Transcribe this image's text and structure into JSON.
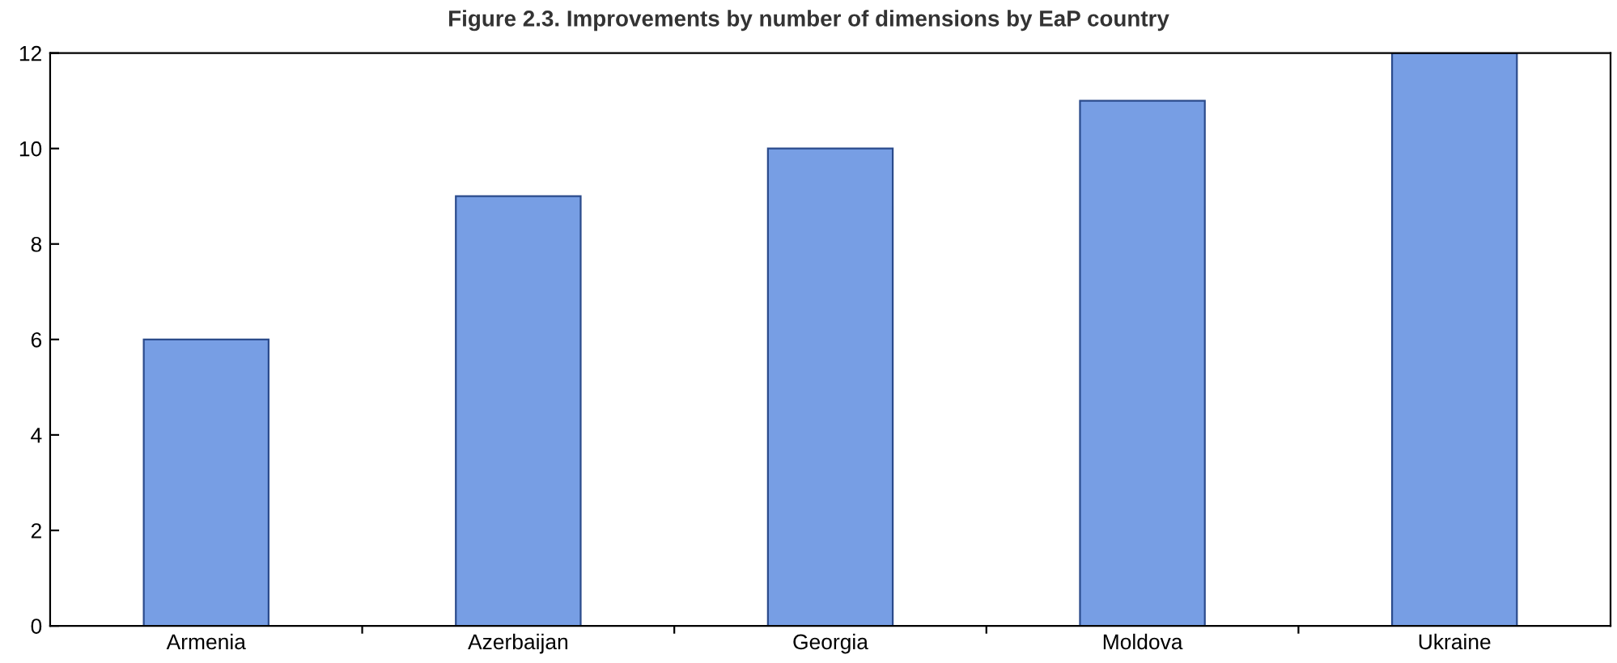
{
  "chart_data": {
    "type": "bar",
    "title": "Figure 2.3. Improvements by number of dimensions by EaP country",
    "categories": [
      "Armenia",
      "Azerbaijan",
      "Georgia",
      "Moldova",
      "Ukraine"
    ],
    "series": [
      {
        "color": "#779ee4",
        "values": [
          6,
          9,
          10,
          11,
          12
        ]
      }
    ],
    "ylim": [
      0,
      12
    ],
    "yticks": [
      0,
      2,
      4,
      6,
      8,
      10,
      12
    ],
    "grid": false,
    "legend": false
  }
}
